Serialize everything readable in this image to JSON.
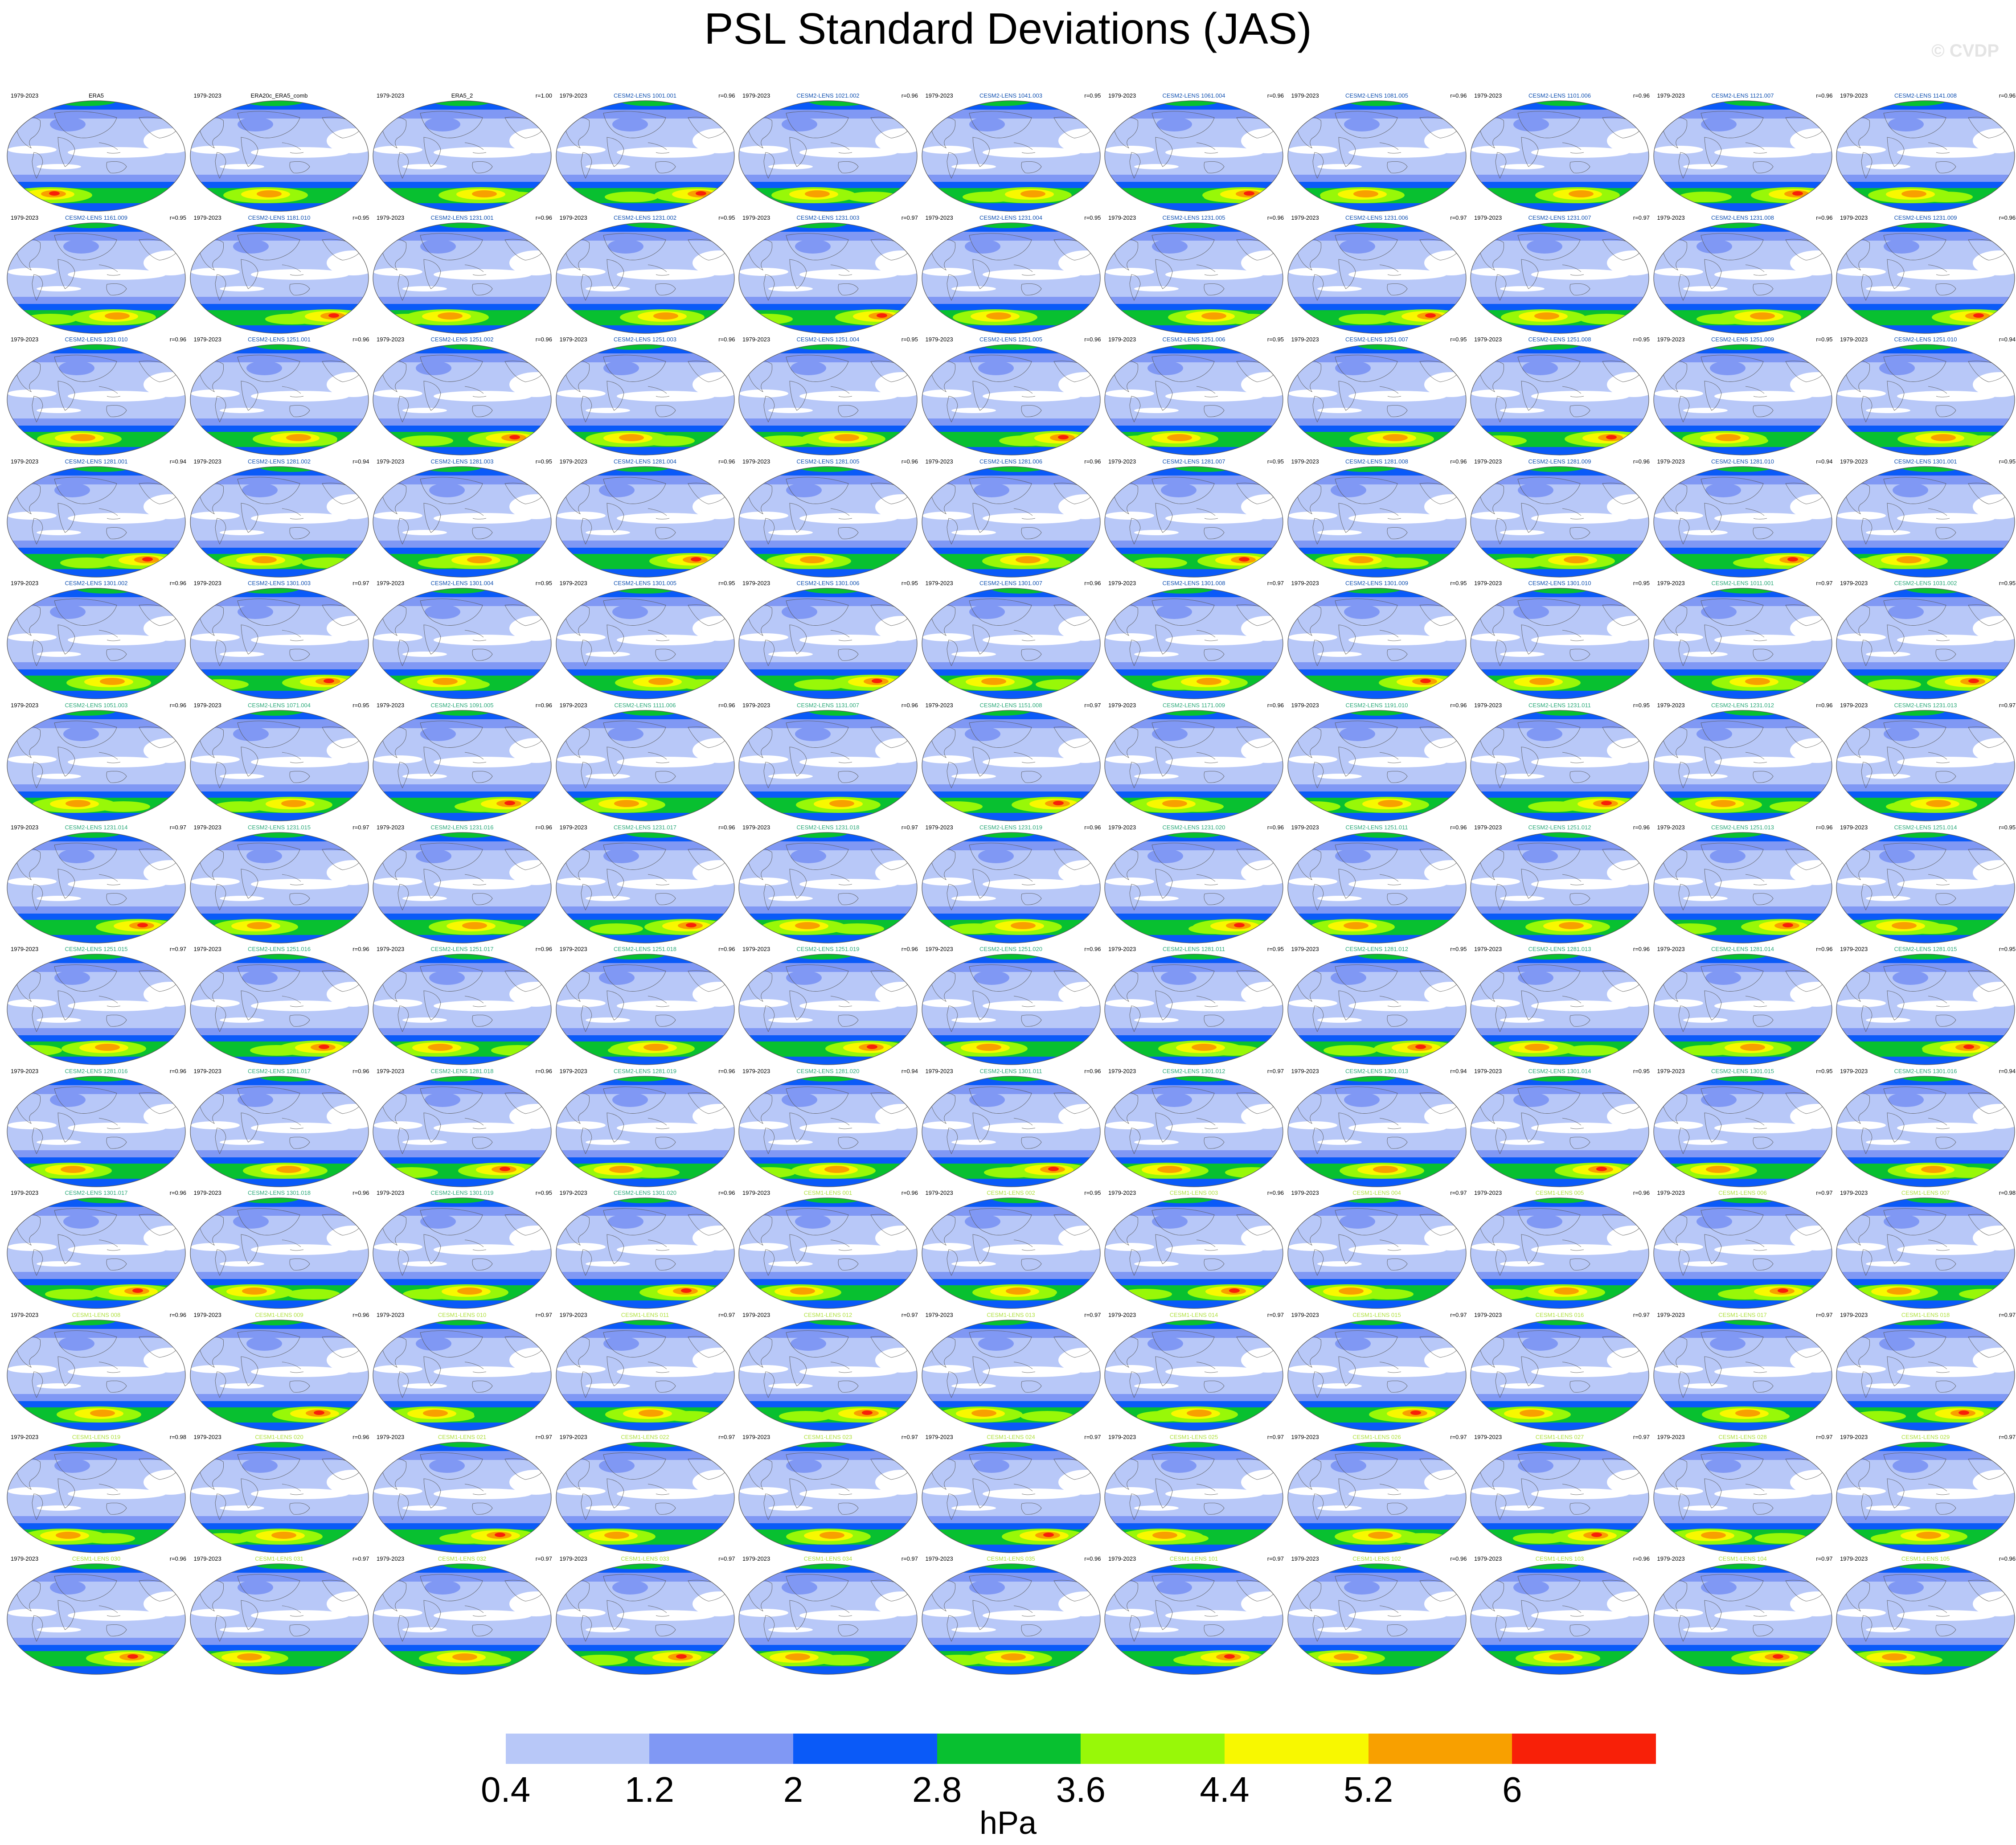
{
  "title": "PSL Standard Deviations (JAS)",
  "watermark": "© CVDP",
  "colorbar": {
    "units": "hPa",
    "tick_labels": [
      "0.4",
      "1.2",
      "2",
      "2.8",
      "3.6",
      "4.4",
      "5.2",
      "6"
    ],
    "colors": [
      "#ffffff",
      "#b8c8f8",
      "#8098f4",
      "#0a5af8",
      "#08c030",
      "#98f808",
      "#f8f800",
      "#f8a000",
      "#f82008"
    ]
  },
  "chart_data": {
    "type": "heatmap",
    "title": "PSL Standard Deviations (JAS)",
    "units": "hPa",
    "levels": [
      0.4,
      1.2,
      2,
      2.8,
      3.6,
      4.4,
      5.2,
      6
    ],
    "projection": "global map panels",
    "period": "1979-2023",
    "layout": {
      "columns": 11,
      "rows": 13
    },
    "panels": [
      {
        "name": "ERA5",
        "years": "1979-2023",
        "r": "",
        "group": "obs"
      },
      {
        "name": "ERA20c_ERA5_comb",
        "years": "1979-2023",
        "r": "",
        "group": "obs"
      },
      {
        "name": "ERA5_2",
        "years": "1979-2023",
        "r": "r=1.00",
        "group": "obs"
      },
      {
        "name": "CESM2-LENS 1001.001",
        "years": "1979-2023",
        "r": "r=0.96",
        "group": "cesm2"
      },
      {
        "name": "CESM2-LENS 1021.002",
        "years": "1979-2023",
        "r": "r=0.96",
        "group": "cesm2"
      },
      {
        "name": "CESM2-LENS 1041.003",
        "years": "1979-2023",
        "r": "r=0.95",
        "group": "cesm2"
      },
      {
        "name": "CESM2-LENS 1061.004",
        "years": "1979-2023",
        "r": "r=0.96",
        "group": "cesm2"
      },
      {
        "name": "CESM2-LENS 1081.005",
        "years": "1979-2023",
        "r": "r=0.96",
        "group": "cesm2"
      },
      {
        "name": "CESM2-LENS 1101.006",
        "years": "1979-2023",
        "r": "r=0.96",
        "group": "cesm2"
      },
      {
        "name": "CESM2-LENS 1121.007",
        "years": "1979-2023",
        "r": "r=0.96",
        "group": "cesm2"
      },
      {
        "name": "CESM2-LENS 1141.008",
        "years": "1979-2023",
        "r": "r=0.96",
        "group": "cesm2"
      },
      {
        "name": "CESM2-LENS 1161.009",
        "years": "1979-2023",
        "r": "r=0.95",
        "group": "cesm2"
      },
      {
        "name": "CESM2-LENS 1181.010",
        "years": "1979-2023",
        "r": "r=0.95",
        "group": "cesm2"
      },
      {
        "name": "CESM2-LENS 1231.001",
        "years": "1979-2023",
        "r": "r=0.96",
        "group": "cesm2"
      },
      {
        "name": "CESM2-LENS 1231.002",
        "years": "1979-2023",
        "r": "r=0.95",
        "group": "cesm2"
      },
      {
        "name": "CESM2-LENS 1231.003",
        "years": "1979-2023",
        "r": "r=0.97",
        "group": "cesm2"
      },
      {
        "name": "CESM2-LENS 1231.004",
        "years": "1979-2023",
        "r": "r=0.95",
        "group": "cesm2"
      },
      {
        "name": "CESM2-LENS 1231.005",
        "years": "1979-2023",
        "r": "r=0.96",
        "group": "cesm2"
      },
      {
        "name": "CESM2-LENS 1231.006",
        "years": "1979-2023",
        "r": "r=0.97",
        "group": "cesm2"
      },
      {
        "name": "CESM2-LENS 1231.007",
        "years": "1979-2023",
        "r": "r=0.97",
        "group": "cesm2"
      },
      {
        "name": "CESM2-LENS 1231.008",
        "years": "1979-2023",
        "r": "r=0.96",
        "group": "cesm2"
      },
      {
        "name": "CESM2-LENS 1231.009",
        "years": "1979-2023",
        "r": "r=0.96",
        "group": "cesm2"
      },
      {
        "name": "CESM2-LENS 1231.010",
        "years": "1979-2023",
        "r": "r=0.96",
        "group": "cesm2"
      },
      {
        "name": "CESM2-LENS 1251.001",
        "years": "1979-2023",
        "r": "r=0.96",
        "group": "cesm2"
      },
      {
        "name": "CESM2-LENS 1251.002",
        "years": "1979-2023",
        "r": "r=0.96",
        "group": "cesm2"
      },
      {
        "name": "CESM2-LENS 1251.003",
        "years": "1979-2023",
        "r": "r=0.96",
        "group": "cesm2"
      },
      {
        "name": "CESM2-LENS 1251.004",
        "years": "1979-2023",
        "r": "r=0.95",
        "group": "cesm2"
      },
      {
        "name": "CESM2-LENS 1251.005",
        "years": "1979-2023",
        "r": "r=0.96",
        "group": "cesm2"
      },
      {
        "name": "CESM2-LENS 1251.006",
        "years": "1979-2023",
        "r": "r=0.95",
        "group": "cesm2"
      },
      {
        "name": "CESM2-LENS 1251.007",
        "years": "1979-2023",
        "r": "r=0.95",
        "group": "cesm2"
      },
      {
        "name": "CESM2-LENS 1251.008",
        "years": "1979-2023",
        "r": "r=0.95",
        "group": "cesm2"
      },
      {
        "name": "CESM2-LENS 1251.009",
        "years": "1979-2023",
        "r": "r=0.95",
        "group": "cesm2"
      },
      {
        "name": "CESM2-LENS 1251.010",
        "years": "1979-2023",
        "r": "r=0.94",
        "group": "cesm2"
      },
      {
        "name": "CESM2-LENS 1281.001",
        "years": "1979-2023",
        "r": "r=0.94",
        "group": "cesm2"
      },
      {
        "name": "CESM2-LENS 1281.002",
        "years": "1979-2023",
        "r": "r=0.94",
        "group": "cesm2"
      },
      {
        "name": "CESM2-LENS 1281.003",
        "years": "1979-2023",
        "r": "r=0.95",
        "group": "cesm2"
      },
      {
        "name": "CESM2-LENS 1281.004",
        "years": "1979-2023",
        "r": "r=0.96",
        "group": "cesm2"
      },
      {
        "name": "CESM2-LENS 1281.005",
        "years": "1979-2023",
        "r": "r=0.96",
        "group": "cesm2"
      },
      {
        "name": "CESM2-LENS 1281.006",
        "years": "1979-2023",
        "r": "r=0.96",
        "group": "cesm2"
      },
      {
        "name": "CESM2-LENS 1281.007",
        "years": "1979-2023",
        "r": "r=0.95",
        "group": "cesm2"
      },
      {
        "name": "CESM2-LENS 1281.008",
        "years": "1979-2023",
        "r": "r=0.96",
        "group": "cesm2"
      },
      {
        "name": "CESM2-LENS 1281.009",
        "years": "1979-2023",
        "r": "r=0.96",
        "group": "cesm2"
      },
      {
        "name": "CESM2-LENS 1281.010",
        "years": "1979-2023",
        "r": "r=0.94",
        "group": "cesm2"
      },
      {
        "name": "CESM2-LENS 1301.001",
        "years": "1979-2023",
        "r": "r=0.95",
        "group": "cesm2"
      },
      {
        "name": "CESM2-LENS 1301.002",
        "years": "1979-2023",
        "r": "r=0.96",
        "group": "cesm2"
      },
      {
        "name": "CESM2-LENS 1301.003",
        "years": "1979-2023",
        "r": "r=0.97",
        "group": "cesm2"
      },
      {
        "name": "CESM2-LENS 1301.004",
        "years": "1979-2023",
        "r": "r=0.95",
        "group": "cesm2"
      },
      {
        "name": "CESM2-LENS 1301.005",
        "years": "1979-2023",
        "r": "r=0.95",
        "group": "cesm2"
      },
      {
        "name": "CESM2-LENS 1301.006",
        "years": "1979-2023",
        "r": "r=0.95",
        "group": "cesm2"
      },
      {
        "name": "CESM2-LENS 1301.007",
        "years": "1979-2023",
        "r": "r=0.96",
        "group": "cesm2"
      },
      {
        "name": "CESM2-LENS 1301.008",
        "years": "1979-2023",
        "r": "r=0.97",
        "group": "cesm2"
      },
      {
        "name": "CESM2-LENS 1301.009",
        "years": "1979-2023",
        "r": "r=0.95",
        "group": "cesm2"
      },
      {
        "name": "CESM2-LENS 1301.010",
        "years": "1979-2023",
        "r": "r=0.95",
        "group": "cesm2"
      },
      {
        "name": "CESM2-LENS 1011.001",
        "years": "1979-2023",
        "r": "r=0.97",
        "group": "cesm2b"
      },
      {
        "name": "CESM2-LENS 1031.002",
        "years": "1979-2023",
        "r": "r=0.95",
        "group": "cesm2b"
      },
      {
        "name": "CESM2-LENS 1051.003",
        "years": "1979-2023",
        "r": "r=0.96",
        "group": "cesm2b"
      },
      {
        "name": "CESM2-LENS 1071.004",
        "years": "1979-2023",
        "r": "r=0.95",
        "group": "cesm2b"
      },
      {
        "name": "CESM2-LENS 1091.005",
        "years": "1979-2023",
        "r": "r=0.96",
        "group": "cesm2b"
      },
      {
        "name": "CESM2-LENS 1111.006",
        "years": "1979-2023",
        "r": "r=0.96",
        "group": "cesm2b"
      },
      {
        "name": "CESM2-LENS 1131.007",
        "years": "1979-2023",
        "r": "r=0.96",
        "group": "cesm2b"
      },
      {
        "name": "CESM2-LENS 1151.008",
        "years": "1979-2023",
        "r": "r=0.97",
        "group": "cesm2b"
      },
      {
        "name": "CESM2-LENS 1171.009",
        "years": "1979-2023",
        "r": "r=0.96",
        "group": "cesm2b"
      },
      {
        "name": "CESM2-LENS 1191.010",
        "years": "1979-2023",
        "r": "r=0.96",
        "group": "cesm2b"
      },
      {
        "name": "CESM2-LENS 1231.011",
        "years": "1979-2023",
        "r": "r=0.95",
        "group": "cesm2b"
      },
      {
        "name": "CESM2-LENS 1231.012",
        "years": "1979-2023",
        "r": "r=0.96",
        "group": "cesm2b"
      },
      {
        "name": "CESM2-LENS 1231.013",
        "years": "1979-2023",
        "r": "r=0.97",
        "group": "cesm2b"
      },
      {
        "name": "CESM2-LENS 1231.014",
        "years": "1979-2023",
        "r": "r=0.97",
        "group": "cesm2b"
      },
      {
        "name": "CESM2-LENS 1231.015",
        "years": "1979-2023",
        "r": "r=0.97",
        "group": "cesm2b"
      },
      {
        "name": "CESM2-LENS 1231.016",
        "years": "1979-2023",
        "r": "r=0.96",
        "group": "cesm2b"
      },
      {
        "name": "CESM2-LENS 1231.017",
        "years": "1979-2023",
        "r": "r=0.96",
        "group": "cesm2b"
      },
      {
        "name": "CESM2-LENS 1231.018",
        "years": "1979-2023",
        "r": "r=0.97",
        "group": "cesm2b"
      },
      {
        "name": "CESM2-LENS 1231.019",
        "years": "1979-2023",
        "r": "r=0.96",
        "group": "cesm2b"
      },
      {
        "name": "CESM2-LENS 1231.020",
        "years": "1979-2023",
        "r": "r=0.96",
        "group": "cesm2b"
      },
      {
        "name": "CESM2-LENS 1251.011",
        "years": "1979-2023",
        "r": "r=0.96",
        "group": "cesm2b"
      },
      {
        "name": "CESM2-LENS 1251.012",
        "years": "1979-2023",
        "r": "r=0.96",
        "group": "cesm2b"
      },
      {
        "name": "CESM2-LENS 1251.013",
        "years": "1979-2023",
        "r": "r=0.96",
        "group": "cesm2b"
      },
      {
        "name": "CESM2-LENS 1251.014",
        "years": "1979-2023",
        "r": "r=0.95",
        "group": "cesm2b"
      },
      {
        "name": "CESM2-LENS 1251.015",
        "years": "1979-2023",
        "r": "r=0.97",
        "group": "cesm2b"
      },
      {
        "name": "CESM2-LENS 1251.016",
        "years": "1979-2023",
        "r": "r=0.96",
        "group": "cesm2b"
      },
      {
        "name": "CESM2-LENS 1251.017",
        "years": "1979-2023",
        "r": "r=0.96",
        "group": "cesm2b"
      },
      {
        "name": "CESM2-LENS 1251.018",
        "years": "1979-2023",
        "r": "r=0.96",
        "group": "cesm2b"
      },
      {
        "name": "CESM2-LENS 1251.019",
        "years": "1979-2023",
        "r": "r=0.96",
        "group": "cesm2b"
      },
      {
        "name": "CESM2-LENS 1251.020",
        "years": "1979-2023",
        "r": "r=0.96",
        "group": "cesm2b"
      },
      {
        "name": "CESM2-LENS 1281.011",
        "years": "1979-2023",
        "r": "r=0.95",
        "group": "cesm2b"
      },
      {
        "name": "CESM2-LENS 1281.012",
        "years": "1979-2023",
        "r": "r=0.95",
        "group": "cesm2b"
      },
      {
        "name": "CESM2-LENS 1281.013",
        "years": "1979-2023",
        "r": "r=0.96",
        "group": "cesm2b"
      },
      {
        "name": "CESM2-LENS 1281.014",
        "years": "1979-2023",
        "r": "r=0.96",
        "group": "cesm2b"
      },
      {
        "name": "CESM2-LENS 1281.015",
        "years": "1979-2023",
        "r": "r=0.95",
        "group": "cesm2b"
      },
      {
        "name": "CESM2-LENS 1281.016",
        "years": "1979-2023",
        "r": "r=0.96",
        "group": "cesm2b"
      },
      {
        "name": "CESM2-LENS 1281.017",
        "years": "1979-2023",
        "r": "r=0.96",
        "group": "cesm2b"
      },
      {
        "name": "CESM2-LENS 1281.018",
        "years": "1979-2023",
        "r": "r=0.96",
        "group": "cesm2b"
      },
      {
        "name": "CESM2-LENS 1281.019",
        "years": "1979-2023",
        "r": "r=0.96",
        "group": "cesm2b"
      },
      {
        "name": "CESM2-LENS 1281.020",
        "years": "1979-2023",
        "r": "r=0.94",
        "group": "cesm2b"
      },
      {
        "name": "CESM2-LENS 1301.011",
        "years": "1979-2023",
        "r": "r=0.96",
        "group": "cesm2b"
      },
      {
        "name": "CESM2-LENS 1301.012",
        "years": "1979-2023",
        "r": "r=0.97",
        "group": "cesm2b"
      },
      {
        "name": "CESM2-LENS 1301.013",
        "years": "1979-2023",
        "r": "r=0.94",
        "group": "cesm2b"
      },
      {
        "name": "CESM2-LENS 1301.014",
        "years": "1979-2023",
        "r": "r=0.95",
        "group": "cesm2b"
      },
      {
        "name": "CESM2-LENS 1301.015",
        "years": "1979-2023",
        "r": "r=0.95",
        "group": "cesm2b"
      },
      {
        "name": "CESM2-LENS 1301.016",
        "years": "1979-2023",
        "r": "r=0.94",
        "group": "cesm2b"
      },
      {
        "name": "CESM2-LENS 1301.017",
        "years": "1979-2023",
        "r": "r=0.96",
        "group": "cesm2b"
      },
      {
        "name": "CESM2-LENS 1301.018",
        "years": "1979-2023",
        "r": "r=0.96",
        "group": "cesm2b"
      },
      {
        "name": "CESM2-LENS 1301.019",
        "years": "1979-2023",
        "r": "r=0.95",
        "group": "cesm2b"
      },
      {
        "name": "CESM2-LENS 1301.020",
        "years": "1979-2023",
        "r": "r=0.96",
        "group": "cesm2b"
      },
      {
        "name": "CESM1-LENS 001",
        "years": "1979-2023",
        "r": "r=0.96",
        "group": "cesm1"
      },
      {
        "name": "CESM1-LENS 002",
        "years": "1979-2023",
        "r": "r=0.95",
        "group": "cesm1"
      },
      {
        "name": "CESM1-LENS 003",
        "years": "1979-2023",
        "r": "r=0.96",
        "group": "cesm1"
      },
      {
        "name": "CESM1-LENS 004",
        "years": "1979-2023",
        "r": "r=0.97",
        "group": "cesm1"
      },
      {
        "name": "CESM1-LENS 005",
        "years": "1979-2023",
        "r": "r=0.96",
        "group": "cesm1"
      },
      {
        "name": "CESM1-LENS 006",
        "years": "1979-2023",
        "r": "r=0.97",
        "group": "cesm1"
      },
      {
        "name": "CESM1-LENS 007",
        "years": "1979-2023",
        "r": "r=0.98",
        "group": "cesm1"
      },
      {
        "name": "CESM1-LENS 008",
        "years": "1979-2023",
        "r": "r=0.96",
        "group": "cesm1"
      },
      {
        "name": "CESM1-LENS 009",
        "years": "1979-2023",
        "r": "r=0.96",
        "group": "cesm1"
      },
      {
        "name": "CESM1-LENS 010",
        "years": "1979-2023",
        "r": "r=0.97",
        "group": "cesm1"
      },
      {
        "name": "CESM1-LENS 011",
        "years": "1979-2023",
        "r": "r=0.97",
        "group": "cesm1"
      },
      {
        "name": "CESM1-LENS 012",
        "years": "1979-2023",
        "r": "r=0.97",
        "group": "cesm1"
      },
      {
        "name": "CESM1-LENS 013",
        "years": "1979-2023",
        "r": "r=0.97",
        "group": "cesm1"
      },
      {
        "name": "CESM1-LENS 014",
        "years": "1979-2023",
        "r": "r=0.97",
        "group": "cesm1"
      },
      {
        "name": "CESM1-LENS 015",
        "years": "1979-2023",
        "r": "r=0.97",
        "group": "cesm1"
      },
      {
        "name": "CESM1-LENS 016",
        "years": "1979-2023",
        "r": "r=0.97",
        "group": "cesm1"
      },
      {
        "name": "CESM1-LENS 017",
        "years": "1979-2023",
        "r": "r=0.97",
        "group": "cesm1"
      },
      {
        "name": "CESM1-LENS 018",
        "years": "1979-2023",
        "r": "r=0.97",
        "group": "cesm1"
      },
      {
        "name": "CESM1-LENS 019",
        "years": "1979-2023",
        "r": "r=0.98",
        "group": "cesm1"
      },
      {
        "name": "CESM1-LENS 020",
        "years": "1979-2023",
        "r": "r=0.96",
        "group": "cesm1"
      },
      {
        "name": "CESM1-LENS 021",
        "years": "1979-2023",
        "r": "r=0.97",
        "group": "cesm1"
      },
      {
        "name": "CESM1-LENS 022",
        "years": "1979-2023",
        "r": "r=0.97",
        "group": "cesm1"
      },
      {
        "name": "CESM1-LENS 023",
        "years": "1979-2023",
        "r": "r=0.97",
        "group": "cesm1"
      },
      {
        "name": "CESM1-LENS 024",
        "years": "1979-2023",
        "r": "r=0.97",
        "group": "cesm1"
      },
      {
        "name": "CESM1-LENS 025",
        "years": "1979-2023",
        "r": "r=0.97",
        "group": "cesm1"
      },
      {
        "name": "CESM1-LENS 026",
        "years": "1979-2023",
        "r": "r=0.97",
        "group": "cesm1"
      },
      {
        "name": "CESM1-LENS 027",
        "years": "1979-2023",
        "r": "r=0.97",
        "group": "cesm1"
      },
      {
        "name": "CESM1-LENS 028",
        "years": "1979-2023",
        "r": "r=0.97",
        "group": "cesm1"
      },
      {
        "name": "CESM1-LENS 029",
        "years": "1979-2023",
        "r": "r=0.97",
        "group": "cesm1"
      },
      {
        "name": "CESM1-LENS 030",
        "years": "1979-2023",
        "r": "r=0.96",
        "group": "cesm1"
      },
      {
        "name": "CESM1-LENS 031",
        "years": "1979-2023",
        "r": "r=0.97",
        "group": "cesm1"
      },
      {
        "name": "CESM1-LENS 032",
        "years": "1979-2023",
        "r": "r=0.97",
        "group": "cesm1"
      },
      {
        "name": "CESM1-LENS 033",
        "years": "1979-2023",
        "r": "r=0.97",
        "group": "cesm1"
      },
      {
        "name": "CESM1-LENS 034",
        "years": "1979-2023",
        "r": "r=0.97",
        "group": "cesm1"
      },
      {
        "name": "CESM1-LENS 035",
        "years": "1979-2023",
        "r": "r=0.96",
        "group": "cesm1"
      },
      {
        "name": "CESM1-LENS 101",
        "years": "1979-2023",
        "r": "r=0.97",
        "group": "cesm1"
      },
      {
        "name": "CESM1-LENS 102",
        "years": "1979-2023",
        "r": "r=0.96",
        "group": "cesm1"
      },
      {
        "name": "CESM1-LENS 103",
        "years": "1979-2023",
        "r": "r=0.96",
        "group": "cesm1"
      },
      {
        "name": "CESM1-LENS 104",
        "years": "1979-2023",
        "r": "r=0.97",
        "group": "cesm1"
      },
      {
        "name": "CESM1-LENS 105",
        "years": "1979-2023",
        "r": "r=0.96",
        "group": "cesm1"
      }
    ]
  },
  "group_colors": {
    "obs": "#000000",
    "cesm2": "#1050b0",
    "cesm2b": "#2aa878",
    "cesm1": "#b0e040"
  }
}
